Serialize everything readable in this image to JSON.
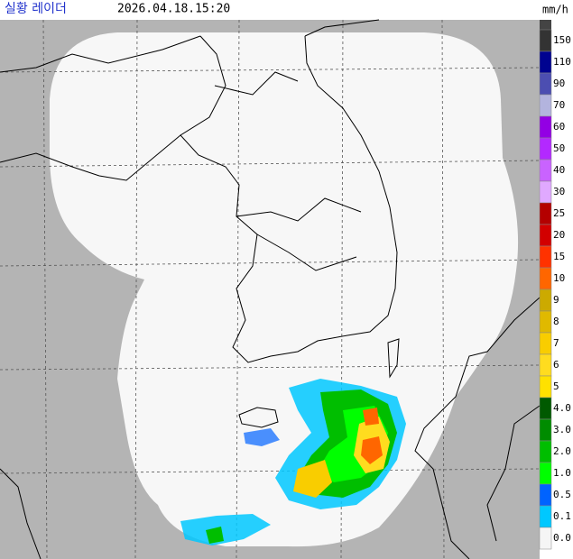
{
  "header": {
    "title": "실황 레이더",
    "time": "2026.04.18.15:20",
    "unit": "mm/h"
  },
  "legend": [
    {
      "label": "150",
      "color": "#333333"
    },
    {
      "label": "110",
      "color": "#000390"
    },
    {
      "label": "90",
      "color": "#4c4eb1"
    },
    {
      "label": "70",
      "color": "#b3b4de"
    },
    {
      "label": "60",
      "color": "#9300e4"
    },
    {
      "label": "50",
      "color": "#b329ff"
    },
    {
      "label": "40",
      "color": "#c963ff"
    },
    {
      "label": "30",
      "color": "#e0a9ff"
    },
    {
      "label": "25",
      "color": "#b40000"
    },
    {
      "label": "20",
      "color": "#d20000"
    },
    {
      "label": "15",
      "color": "#ff3200"
    },
    {
      "label": "10",
      "color": "#ff6600"
    },
    {
      "label": "9",
      "color": "#ccaa00"
    },
    {
      "label": "8",
      "color": "#e0b900"
    },
    {
      "label": "7",
      "color": "#f9cd00"
    },
    {
      "label": "6",
      "color": "#ffdc1f"
    },
    {
      "label": "5",
      "color": "#ffe100"
    },
    {
      "label": "4.0",
      "color": "#005a00"
    },
    {
      "label": "3.0",
      "color": "#008c00"
    },
    {
      "label": "2.0",
      "color": "#00be00"
    },
    {
      "label": "1.0",
      "color": "#00ff00"
    },
    {
      "label": "0.5",
      "color": "#0063ff"
    },
    {
      "label": "0.1",
      "color": "#00c8ff"
    },
    {
      "label": "0.0",
      "color": "#f5f5f5"
    }
  ]
}
